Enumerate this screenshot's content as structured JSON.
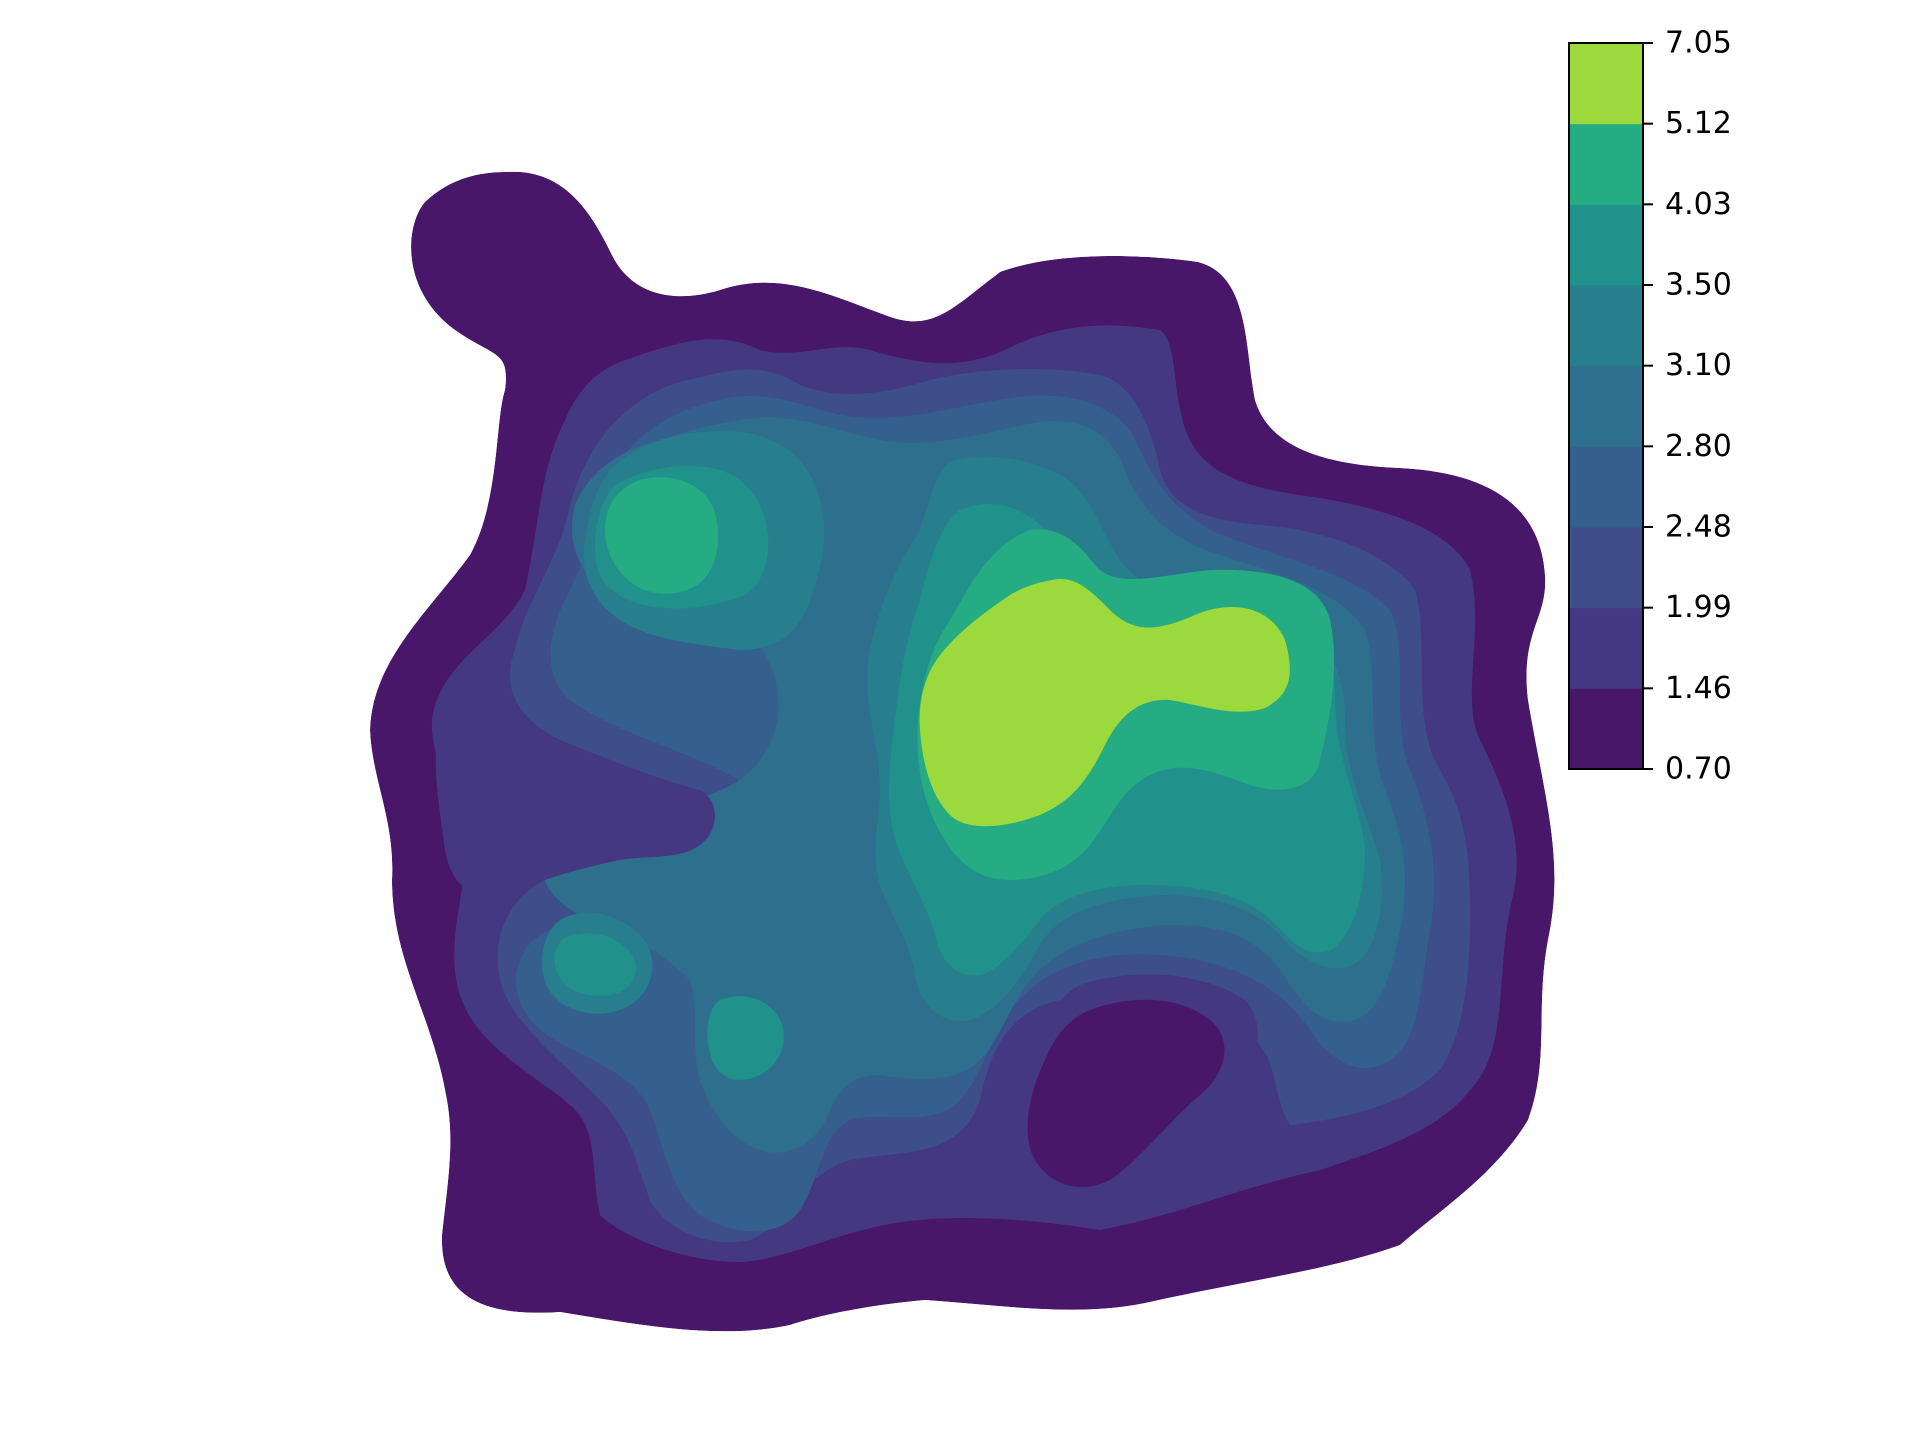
{
  "chart_data": {
    "type": "heatmap",
    "subtype": "filled-contour",
    "title": "",
    "xlabel": "",
    "ylabel": "",
    "axes_visible": false,
    "grid": false,
    "colormap": "viridis",
    "colorbar": {
      "placement": "right",
      "levels": [
        0.7,
        1.46,
        1.99,
        2.48,
        2.8,
        3.1,
        3.5,
        4.03,
        5.12,
        7.05
      ],
      "tick_labels": [
        "0.70",
        "1.46",
        "1.99",
        "2.48",
        "2.80",
        "3.10",
        "3.50",
        "4.03",
        "5.12",
        "7.05"
      ],
      "colors": [
        "#481769",
        "#453882",
        "#3d4e8a",
        "#35608d",
        "#2e6f8e",
        "#277f8e",
        "#21918c",
        "#25ac82",
        "#9bd93c"
      ]
    },
    "peak_levels": [
      {
        "description": "main peak",
        "band": 8
      },
      {
        "description": "upper-left peak",
        "band": 7
      },
      {
        "description": "lower-center depression",
        "band": 0
      }
    ]
  }
}
